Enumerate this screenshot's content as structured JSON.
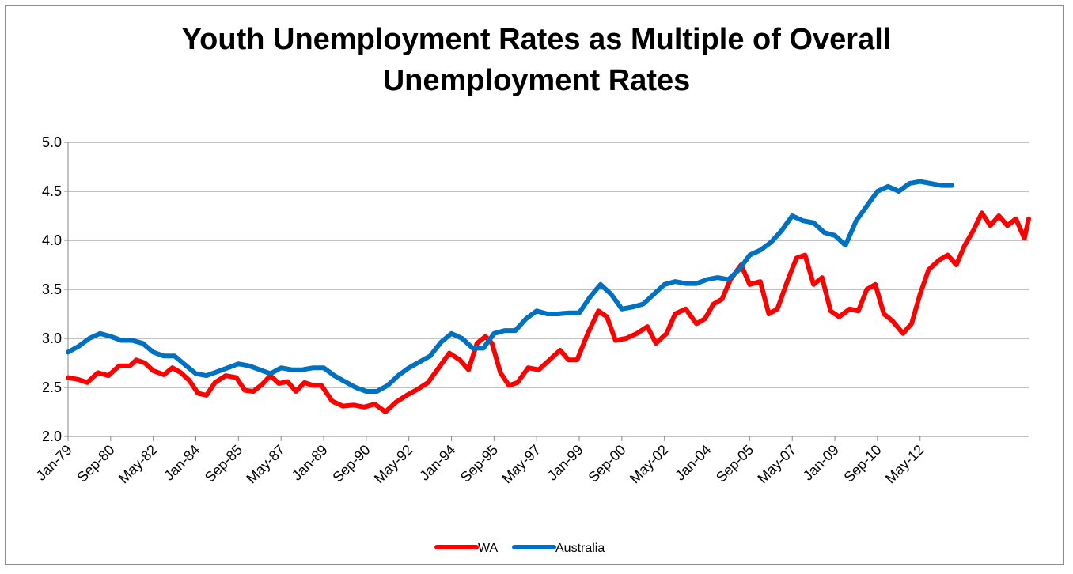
{
  "chart_data": {
    "type": "line",
    "title": "Youth Unemployment Rates as Multiple of Overall\nUnemployment Rates",
    "xlabel": "",
    "ylabel": "",
    "ylim": [
      2.0,
      5.0
    ],
    "yticks": [
      "2.0",
      "2.5",
      "3.0",
      "3.5",
      "4.0",
      "4.5",
      "5.0"
    ],
    "xticks": [
      "Jan-79",
      "Sep-80",
      "May-82",
      "Jan-84",
      "Sep-85",
      "May-87",
      "Jan-89",
      "Sep-90",
      "May-92",
      "Jan-94",
      "Sep-95",
      "May-97",
      "Jan-99",
      "Sep-00",
      "May-02",
      "Jan-04",
      "Sep-05",
      "May-07",
      "Jan-09",
      "Sep-10",
      "May-12"
    ],
    "x_range": [
      "Jan-79",
      "Apr-13"
    ],
    "grid": true,
    "legend_position": "bottom",
    "series": [
      {
        "name": "WA",
        "color": "#ff0000",
        "points": [
          [
            "Jan-79",
            2.6
          ],
          [
            "Jun-79",
            2.58
          ],
          [
            "Oct-79",
            2.55
          ],
          [
            "Mar-80",
            2.65
          ],
          [
            "Aug-80",
            2.62
          ],
          [
            "Jan-81",
            2.72
          ],
          [
            "Jun-81",
            2.72
          ],
          [
            "Sep-81",
            2.78
          ],
          [
            "Jan-82",
            2.75
          ],
          [
            "May-82",
            2.67
          ],
          [
            "Oct-82",
            2.63
          ],
          [
            "Feb-83",
            2.7
          ],
          [
            "Jun-83",
            2.65
          ],
          [
            "Oct-83",
            2.57
          ],
          [
            "Feb-84",
            2.44
          ],
          [
            "Jun-84",
            2.42
          ],
          [
            "Oct-84",
            2.55
          ],
          [
            "Mar-85",
            2.62
          ],
          [
            "Aug-85",
            2.6
          ],
          [
            "Dec-85",
            2.47
          ],
          [
            "Apr-86",
            2.46
          ],
          [
            "Aug-86",
            2.53
          ],
          [
            "Dec-86",
            2.62
          ],
          [
            "Apr-87",
            2.54
          ],
          [
            "Aug-87",
            2.56
          ],
          [
            "Dec-87",
            2.46
          ],
          [
            "Apr-88",
            2.55
          ],
          [
            "Aug-88",
            2.52
          ],
          [
            "Dec-88",
            2.52
          ],
          [
            "May-89",
            2.36
          ],
          [
            "Oct-89",
            2.31
          ],
          [
            "Mar-90",
            2.32
          ],
          [
            "Aug-90",
            2.3
          ],
          [
            "Jan-91",
            2.33
          ],
          [
            "Jun-91",
            2.25
          ],
          [
            "Nov-91",
            2.35
          ],
          [
            "Apr-92",
            2.42
          ],
          [
            "Sep-92",
            2.48
          ],
          [
            "Feb-93",
            2.55
          ],
          [
            "Jul-93",
            2.7
          ],
          [
            "Dec-93",
            2.85
          ],
          [
            "May-94",
            2.78
          ],
          [
            "Sep-94",
            2.68
          ],
          [
            "Jan-95",
            2.95
          ],
          [
            "May-95",
            3.02
          ],
          [
            "Aug-95",
            2.95
          ],
          [
            "Dec-95",
            2.65
          ],
          [
            "Apr-96",
            2.52
          ],
          [
            "Aug-96",
            2.55
          ],
          [
            "Jan-97",
            2.7
          ],
          [
            "Jun-97",
            2.68
          ],
          [
            "Nov-97",
            2.78
          ],
          [
            "Apr-98",
            2.88
          ],
          [
            "Aug-98",
            2.78
          ],
          [
            "Dec-98",
            2.78
          ],
          [
            "May-99",
            3.05
          ],
          [
            "Oct-99",
            3.28
          ],
          [
            "Feb-00",
            3.22
          ],
          [
            "Jun-00",
            2.98
          ],
          [
            "Nov-00",
            3.0
          ],
          [
            "Apr-01",
            3.05
          ],
          [
            "Sep-01",
            3.12
          ],
          [
            "Jan-02",
            2.95
          ],
          [
            "Jun-02",
            3.05
          ],
          [
            "Oct-02",
            3.25
          ],
          [
            "Mar-03",
            3.3
          ],
          [
            "Aug-03",
            3.15
          ],
          [
            "Dec-03",
            3.2
          ],
          [
            "Apr-04",
            3.35
          ],
          [
            "Aug-04",
            3.4
          ],
          [
            "Dec-04",
            3.6
          ],
          [
            "May-05",
            3.75
          ],
          [
            "Sep-05",
            3.55
          ],
          [
            "Feb-06",
            3.58
          ],
          [
            "Jun-06",
            3.25
          ],
          [
            "Oct-06",
            3.3
          ],
          [
            "Mar-07",
            3.6
          ],
          [
            "Jul-07",
            3.82
          ],
          [
            "Nov-07",
            3.85
          ],
          [
            "Mar-08",
            3.55
          ],
          [
            "Jul-08",
            3.62
          ],
          [
            "Nov-08",
            3.28
          ],
          [
            "Mar-09",
            3.22
          ],
          [
            "Aug-09",
            3.3
          ],
          [
            "Dec-09",
            3.28
          ],
          [
            "Apr-10",
            3.5
          ],
          [
            "Aug-10",
            3.55
          ],
          [
            "Dec-10",
            3.25
          ],
          [
            "Apr-11",
            3.18
          ],
          [
            "Sep-11",
            3.05
          ],
          [
            "Jan-12",
            3.15
          ],
          [
            "May-12",
            3.45
          ],
          [
            "Sep-12",
            3.7
          ],
          [
            "Feb-13",
            3.8
          ],
          [
            "Jun-13",
            3.85
          ],
          [
            "Oct-13",
            3.75
          ],
          [
            "Feb-14",
            3.95
          ],
          [
            "Jun-14",
            4.1
          ],
          [
            "Oct-14",
            4.28
          ],
          [
            "Feb-15",
            4.15
          ],
          [
            "Jun-15",
            4.25
          ],
          [
            "Oct-15",
            4.15
          ],
          [
            "Feb-16",
            4.22
          ],
          [
            "Jun-16",
            4.02
          ],
          [
            "Aug-16",
            4.22
          ]
        ]
      },
      {
        "name": "Australia",
        "color": "#0070c0",
        "points": [
          [
            "Jan-79",
            2.86
          ],
          [
            "Jun-79",
            2.92
          ],
          [
            "Nov-79",
            3.0
          ],
          [
            "Apr-80",
            3.05
          ],
          [
            "Sep-80",
            3.02
          ],
          [
            "Feb-81",
            2.98
          ],
          [
            "Jul-81",
            2.98
          ],
          [
            "Dec-81",
            2.95
          ],
          [
            "May-82",
            2.86
          ],
          [
            "Oct-82",
            2.82
          ],
          [
            "Mar-83",
            2.82
          ],
          [
            "Aug-83",
            2.73
          ],
          [
            "Jan-84",
            2.64
          ],
          [
            "Jun-84",
            2.62
          ],
          [
            "Nov-84",
            2.66
          ],
          [
            "Apr-85",
            2.7
          ],
          [
            "Sep-85",
            2.74
          ],
          [
            "Feb-86",
            2.72
          ],
          [
            "Jul-86",
            2.68
          ],
          [
            "Dec-86",
            2.64
          ],
          [
            "May-87",
            2.7
          ],
          [
            "Oct-87",
            2.68
          ],
          [
            "Mar-88",
            2.68
          ],
          [
            "Aug-88",
            2.7
          ],
          [
            "Jan-89",
            2.7
          ],
          [
            "Jun-89",
            2.62
          ],
          [
            "Nov-89",
            2.56
          ],
          [
            "Apr-90",
            2.5
          ],
          [
            "Sep-90",
            2.46
          ],
          [
            "Feb-91",
            2.46
          ],
          [
            "Jul-91",
            2.52
          ],
          [
            "Dec-91",
            2.62
          ],
          [
            "May-92",
            2.7
          ],
          [
            "Oct-92",
            2.76
          ],
          [
            "Mar-93",
            2.82
          ],
          [
            "Aug-93",
            2.96
          ],
          [
            "Jan-94",
            3.05
          ],
          [
            "Jun-94",
            3.0
          ],
          [
            "Nov-94",
            2.9
          ],
          [
            "Apr-95",
            2.9
          ],
          [
            "Sep-95",
            3.05
          ],
          [
            "Feb-96",
            3.08
          ],
          [
            "Jul-96",
            3.08
          ],
          [
            "Dec-96",
            3.2
          ],
          [
            "May-97",
            3.28
          ],
          [
            "Oct-97",
            3.25
          ],
          [
            "Mar-98",
            3.25
          ],
          [
            "Aug-98",
            3.26
          ],
          [
            "Jan-99",
            3.26
          ],
          [
            "Jun-99",
            3.42
          ],
          [
            "Nov-99",
            3.55
          ],
          [
            "Apr-00",
            3.45
          ],
          [
            "Sep-00",
            3.3
          ],
          [
            "Feb-01",
            3.32
          ],
          [
            "Jul-01",
            3.35
          ],
          [
            "Dec-01",
            3.45
          ],
          [
            "May-02",
            3.55
          ],
          [
            "Oct-02",
            3.58
          ],
          [
            "Mar-03",
            3.56
          ],
          [
            "Aug-03",
            3.56
          ],
          [
            "Jan-04",
            3.6
          ],
          [
            "Jun-04",
            3.62
          ],
          [
            "Nov-04",
            3.6
          ],
          [
            "Apr-05",
            3.7
          ],
          [
            "Sep-05",
            3.85
          ],
          [
            "Feb-06",
            3.9
          ],
          [
            "Jul-06",
            3.98
          ],
          [
            "Dec-06",
            4.1
          ],
          [
            "May-07",
            4.25
          ],
          [
            "Oct-07",
            4.2
          ],
          [
            "Mar-08",
            4.18
          ],
          [
            "Aug-08",
            4.08
          ],
          [
            "Jan-09",
            4.05
          ],
          [
            "Jun-09",
            3.95
          ],
          [
            "Nov-09",
            4.2
          ],
          [
            "Apr-10",
            4.35
          ],
          [
            "Sep-10",
            4.5
          ],
          [
            "Feb-11",
            4.55
          ],
          [
            "Jul-11",
            4.5
          ],
          [
            "Dec-11",
            4.58
          ],
          [
            "May-12",
            4.6
          ],
          [
            "Oct-12",
            4.58
          ],
          [
            "Mar-13",
            4.56
          ],
          [
            "Aug-13",
            4.56
          ]
        ]
      }
    ]
  }
}
